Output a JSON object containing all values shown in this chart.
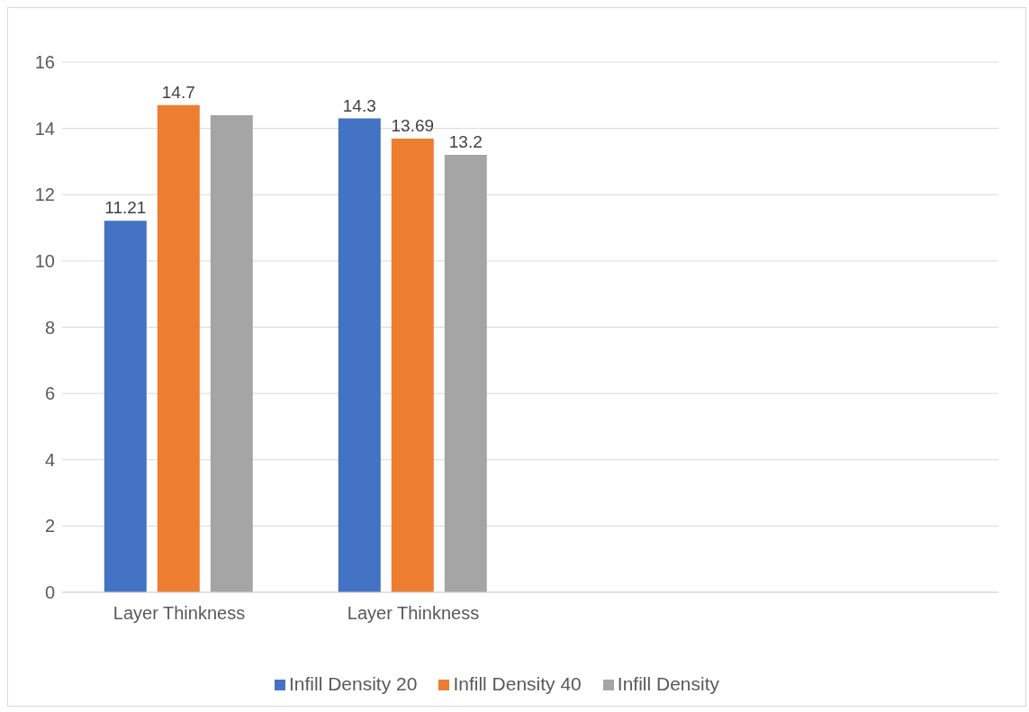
{
  "chart_data": {
    "type": "bar",
    "categories": [
      "Layer Thinkness",
      "Layer Thinkness",
      null,
      null
    ],
    "series": [
      {
        "name": "Infill Density 20",
        "color": "#4472c4",
        "values": [
          11.21,
          14.3,
          null,
          null
        ],
        "value_labels": [
          "11.21",
          "14.3",
          null,
          null
        ]
      },
      {
        "name": "Infill Density 40",
        "color": "#ed7d31",
        "values": [
          14.7,
          13.69,
          null,
          null
        ],
        "value_labels": [
          "14.7",
          "13.69",
          null,
          null
        ]
      },
      {
        "name": "Infill Density",
        "color": "#a5a5a5",
        "values": [
          14.4,
          13.2,
          null,
          null
        ],
        "value_labels": [
          null,
          "13.2",
          null,
          null
        ]
      }
    ],
    "ylim": [
      0,
      16
    ],
    "yticks": [
      0,
      2,
      4,
      6,
      8,
      10,
      12,
      14,
      16
    ],
    "grid": "y",
    "legend": "bottom"
  }
}
